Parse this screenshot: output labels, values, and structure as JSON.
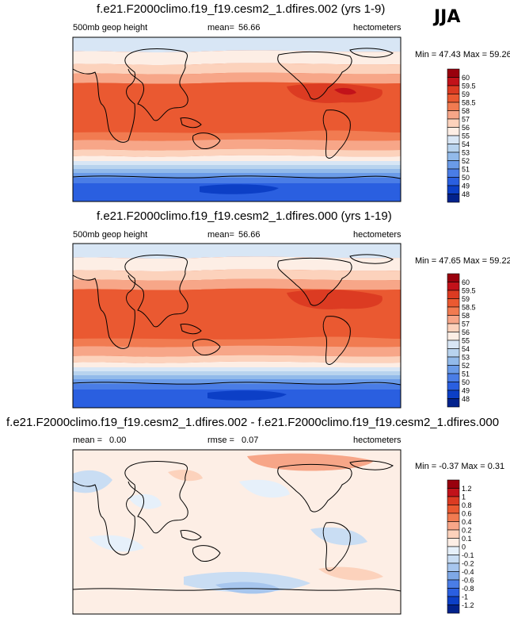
{
  "season": "JJA",
  "chart_data": [
    {
      "type": "heatmap",
      "title": "f.e21.F2000climo.f19_f19.cesm2_1.dfires.002 (yrs 1-9)",
      "variable": "500mb geop height",
      "mean_label": "mean=",
      "mean": "56.66",
      "units": "hectometers",
      "stats": "Min = 47.43 Max = 59.26",
      "min": 47.43,
      "max": 59.26,
      "levels": [
        "60",
        "59.5",
        "59",
        "58.5",
        "58",
        "57",
        "56",
        "55",
        "54",
        "53",
        "52",
        "51",
        "50",
        "49",
        "48"
      ],
      "colors": [
        "#99000d",
        "#c2121a",
        "#dc3b22",
        "#ea5931",
        "#f17b51",
        "#f7a688",
        "#fcd2bc",
        "#fdeee5",
        "#d8e6f5",
        "#b8d3ee",
        "#92baea",
        "#6a9be8",
        "#4a7de6",
        "#2a5fe0",
        "#0c3fc6",
        "#02228c"
      ]
    },
    {
      "type": "heatmap",
      "title": "f.e21.F2000climo.f19_f19.cesm2_1.dfires.000 (yrs 1-19)",
      "variable": "500mb geop height",
      "mean_label": "mean=",
      "mean": "56.66",
      "units": "hectometers",
      "stats": "Min = 47.65 Max = 59.22",
      "min": 47.65,
      "max": 59.22,
      "levels": [
        "60",
        "59.5",
        "59",
        "58.5",
        "58",
        "57",
        "56",
        "55",
        "54",
        "53",
        "52",
        "51",
        "50",
        "49",
        "48"
      ],
      "colors": [
        "#99000d",
        "#c2121a",
        "#dc3b22",
        "#ea5931",
        "#f17b51",
        "#f7a688",
        "#fcd2bc",
        "#fdeee5",
        "#d8e6f5",
        "#b8d3ee",
        "#92baea",
        "#6a9be8",
        "#4a7de6",
        "#2a5fe0",
        "#0c3fc6",
        "#02228c"
      ]
    },
    {
      "type": "heatmap",
      "title": "f.e21.F2000climo.f19_f19.cesm2_1.dfires.002 - f.e21.F2000climo.f19_f19.cesm2_1.dfires.000",
      "mean_label": "mean =",
      "mean": "0.00",
      "rmse_label": "rmse =",
      "rmse": "0.07",
      "units": "hectometers",
      "stats": "Min = -0.37 Max =  0.31",
      "min": -0.37,
      "max": 0.31,
      "levels": [
        "1.2",
        "1",
        "0.8",
        "0.6",
        "0.4",
        "0.2",
        "0.1",
        "0",
        "-0.1",
        "-0.2",
        "-0.4",
        "-0.6",
        "-0.8",
        "-1",
        "-1.2"
      ],
      "colors": [
        "#99000d",
        "#c2121a",
        "#dc3b22",
        "#ea5931",
        "#f17b51",
        "#f7a688",
        "#fcd2bc",
        "#fdeee5",
        "#e6f0fa",
        "#c9ddf3",
        "#a7c6ee",
        "#7ea8e6",
        "#4a7de6",
        "#2a5fe0",
        "#0c3fc6",
        "#02228c"
      ]
    }
  ]
}
